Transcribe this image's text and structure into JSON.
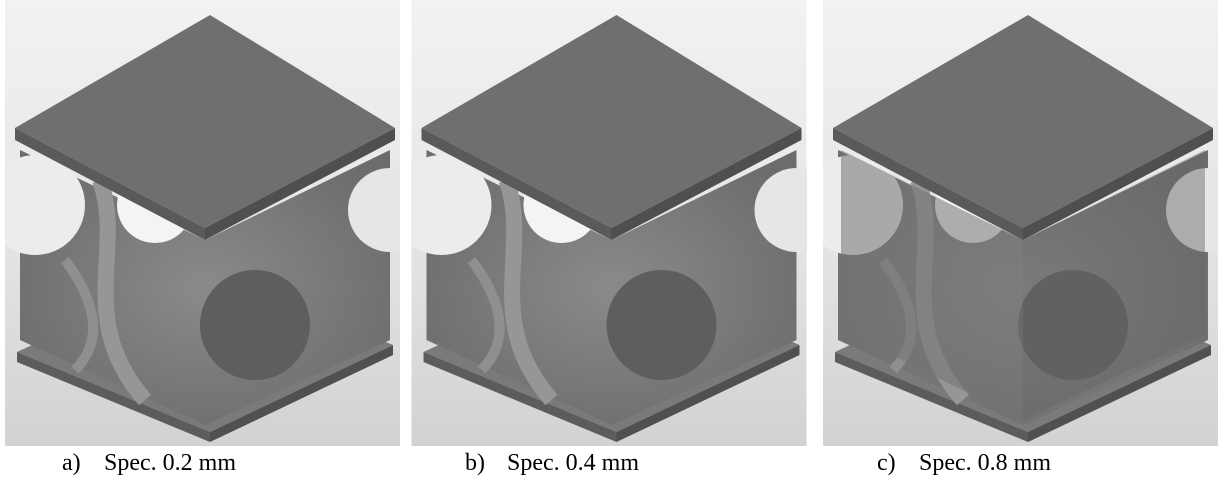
{
  "figure": {
    "panels": [
      {
        "label": "a)",
        "caption": "Spec. 0.2 mm"
      },
      {
        "label": "b)",
        "caption": "Spec. 0.4 mm"
      },
      {
        "label": "c)",
        "caption": "Spec. 0.8 mm"
      }
    ]
  }
}
